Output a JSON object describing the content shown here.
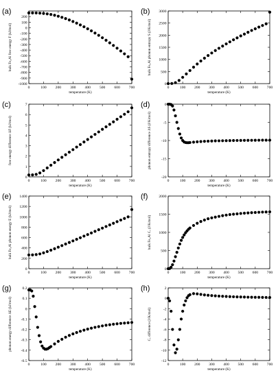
{
  "chart_data": [
    {
      "panel": "(a)",
      "type": "scatter",
      "xlabel": "temperature (K)",
      "ylabel": "bulk Fe₃Al free energy F (kJ/mol)",
      "xlim": [
        0,
        700
      ],
      "ylim": [
        -1000,
        300
      ],
      "xticks": [
        0,
        100,
        200,
        300,
        400,
        500,
        600,
        700
      ],
      "yticks": [
        -1000,
        -900,
        -800,
        -700,
        -600,
        -500,
        -400,
        -300,
        -200,
        -100,
        0,
        100,
        200
      ],
      "x": [
        0,
        25,
        50,
        75,
        100,
        125,
        150,
        175,
        200,
        225,
        250,
        275,
        300,
        325,
        350,
        375,
        400,
        425,
        450,
        475,
        500,
        525,
        550,
        575,
        600,
        625,
        650,
        675,
        700
      ],
      "y": [
        265,
        265,
        264,
        261,
        256,
        248,
        237,
        223,
        206,
        186,
        164,
        139,
        111,
        82,
        50,
        17,
        -19,
        -56,
        -95,
        -136,
        -179,
        -224,
        -270,
        -317,
        -366,
        -416,
        -467,
        -519,
        -920
      ]
    },
    {
      "panel": "(b)",
      "type": "scatter",
      "xlabel": "temperature (K)",
      "ylabel": "bulk Fe₃Al phonon entropy S (J/K/mol)",
      "xlim": [
        0,
        700
      ],
      "ylim": [
        0,
        3000
      ],
      "xticks": [
        0,
        100,
        200,
        300,
        400,
        500,
        600,
        700
      ],
      "yticks": [
        0,
        500,
        1000,
        1500,
        2000,
        2500,
        3000
      ],
      "x": [
        0,
        25,
        50,
        75,
        100,
        125,
        150,
        175,
        200,
        225,
        250,
        275,
        300,
        325,
        350,
        375,
        400,
        425,
        450,
        475,
        500,
        525,
        550,
        575,
        600,
        625,
        650,
        675,
        700
      ],
      "y": [
        0,
        5,
        40,
        130,
        260,
        400,
        540,
        680,
        810,
        935,
        1050,
        1160,
        1265,
        1365,
        1460,
        1550,
        1640,
        1725,
        1810,
        1890,
        1970,
        2045,
        2120,
        2195,
        2265,
        2335,
        2400,
        2470,
        2950
      ]
    },
    {
      "panel": "(c)",
      "type": "scatter",
      "xlabel": "temperature (K)",
      "ylabel": "free energy difference ΔF (kJ/mol)",
      "xlim": [
        0,
        700
      ],
      "ylim": [
        0,
        7
      ],
      "xticks": [
        0,
        100,
        200,
        300,
        400,
        500,
        600,
        700
      ],
      "yticks": [
        0,
        1,
        2,
        3,
        4,
        5,
        6,
        7
      ],
      "x": [
        0,
        25,
        50,
        75,
        100,
        125,
        150,
        175,
        200,
        225,
        250,
        275,
        300,
        325,
        350,
        375,
        400,
        425,
        450,
        475,
        500,
        525,
        550,
        575,
        600,
        625,
        650,
        675,
        700
      ],
      "y": [
        0.18,
        0.19,
        0.24,
        0.38,
        0.6,
        0.86,
        1.12,
        1.38,
        1.63,
        1.88,
        2.13,
        2.38,
        2.62,
        2.87,
        3.11,
        3.36,
        3.6,
        3.85,
        4.09,
        4.33,
        4.58,
        4.82,
        5.06,
        5.3,
        5.55,
        5.79,
        6.03,
        6.27,
        6.65
      ]
    },
    {
      "panel": "(d)",
      "type": "scatter",
      "xlabel": "temperature (K)",
      "ylabel": "phonon entropy difference ΔS (J/K/mol)",
      "xlim": [
        0,
        700
      ],
      "ylim": [
        -20,
        0
      ],
      "xticks": [
        0,
        100,
        200,
        300,
        400,
        500,
        600,
        700
      ],
      "yticks": [
        -20,
        -15,
        -10,
        -5,
        0
      ],
      "x": [
        0,
        10,
        20,
        30,
        40,
        50,
        60,
        70,
        80,
        90,
        100,
        110,
        120,
        130,
        140,
        150,
        175,
        200,
        225,
        250,
        275,
        300,
        325,
        350,
        375,
        400,
        425,
        450,
        475,
        500,
        525,
        550,
        575,
        600,
        625,
        650,
        675,
        700
      ],
      "y": [
        0,
        0,
        -0.1,
        -0.5,
        -1.6,
        -3.2,
        -5.0,
        -6.7,
        -8.2,
        -9.3,
        -10.0,
        -10.4,
        -10.55,
        -10.6,
        -10.6,
        -10.55,
        -10.45,
        -10.35,
        -10.28,
        -10.22,
        -10.18,
        -10.14,
        -10.1,
        -10.08,
        -10.06,
        -10.04,
        -10.02,
        -10.0,
        -9.99,
        -9.98,
        -9.96,
        -9.95,
        -9.94,
        -9.93,
        -9.92,
        -9.91,
        -9.9,
        -9.9
      ]
    },
    {
      "panel": "(e)",
      "type": "scatter",
      "xlabel": "temperature (K)",
      "ylabel": "bulk Fe₃Al phonon energy E (kJ/mol)",
      "xlim": [
        0,
        700
      ],
      "ylim": [
        0,
        1400
      ],
      "xticks": [
        0,
        100,
        200,
        300,
        400,
        500,
        600,
        700
      ],
      "yticks": [
        0,
        200,
        400,
        600,
        800,
        1000,
        1200,
        1400
      ],
      "x": [
        0,
        25,
        50,
        75,
        100,
        125,
        150,
        175,
        200,
        225,
        250,
        275,
        300,
        325,
        350,
        375,
        400,
        425,
        450,
        475,
        500,
        525,
        550,
        575,
        600,
        625,
        650,
        675,
        700
      ],
      "y": [
        265,
        266,
        272,
        285,
        305,
        330,
        357,
        385,
        415,
        445,
        475,
        505,
        536,
        566,
        597,
        628,
        658,
        689,
        720,
        751,
        782,
        813,
        844,
        875,
        906,
        937,
        968,
        999,
        1140
      ]
    },
    {
      "panel": "(f)",
      "type": "scatter",
      "xlabel": "temperature (K)",
      "ylabel": "bulk Fe₃Al Cᵥ (J/K/mol)",
      "xlim": [
        0,
        700
      ],
      "ylim": [
        0,
        2000
      ],
      "xticks": [
        0,
        100,
        200,
        300,
        400,
        500,
        600,
        700
      ],
      "yticks": [
        0,
        500,
        1000,
        1500,
        2000
      ],
      "x": [
        0,
        10,
        20,
        30,
        40,
        50,
        60,
        70,
        80,
        90,
        100,
        110,
        120,
        130,
        140,
        150,
        175,
        200,
        225,
        250,
        275,
        300,
        325,
        350,
        375,
        400,
        425,
        450,
        475,
        500,
        525,
        550,
        575,
        600,
        625,
        650,
        675,
        700
      ],
      "y": [
        0,
        5,
        40,
        110,
        210,
        330,
        450,
        570,
        680,
        780,
        860,
        930,
        990,
        1040,
        1085,
        1120,
        1190,
        1250,
        1300,
        1340,
        1375,
        1400,
        1420,
        1440,
        1460,
        1475,
        1490,
        1500,
        1510,
        1520,
        1528,
        1535,
        1542,
        1548,
        1553,
        1558,
        1562,
        1565
      ]
    },
    {
      "panel": "(g)",
      "type": "scatter",
      "xlabel": "temperature (K)",
      "ylabel": "phonon energy difference ΔE (kJ/mol)",
      "xlim": [
        0,
        700
      ],
      "ylim": [
        -0.5,
        0.2
      ],
      "xticks": [
        0,
        100,
        200,
        300,
        400,
        500,
        600,
        700
      ],
      "yticks": [
        -0.5,
        -0.4,
        -0.3,
        -0.2,
        -0.1,
        0,
        0.1,
        0.2
      ],
      "x": [
        0,
        10,
        20,
        30,
        40,
        50,
        60,
        70,
        80,
        90,
        100,
        110,
        120,
        130,
        140,
        150,
        175,
        200,
        225,
        250,
        275,
        300,
        325,
        350,
        375,
        400,
        425,
        450,
        475,
        500,
        525,
        550,
        575,
        600,
        625,
        650,
        675,
        700
      ],
      "y": [
        0.18,
        0.18,
        0.17,
        0.12,
        0.02,
        -0.08,
        -0.18,
        -0.26,
        -0.32,
        -0.36,
        -0.38,
        -0.39,
        -0.39,
        -0.385,
        -0.375,
        -0.365,
        -0.34,
        -0.315,
        -0.295,
        -0.275,
        -0.258,
        -0.243,
        -0.23,
        -0.218,
        -0.207,
        -0.197,
        -0.188,
        -0.18,
        -0.173,
        -0.166,
        -0.16,
        -0.155,
        -0.15,
        -0.146,
        -0.142,
        -0.139,
        -0.136,
        -0.133
      ]
    },
    {
      "panel": "(h)",
      "type": "scatter",
      "xlabel": "temperature (K)",
      "ylabel": "Cᵥ difference (J/K/mol)",
      "xlim": [
        0,
        700
      ],
      "ylim": [
        -12,
        2
      ],
      "xticks": [
        0,
        100,
        200,
        300,
        400,
        500,
        600,
        700
      ],
      "yticks": [
        -12,
        -10,
        -8,
        -6,
        -4,
        -2,
        0,
        2
      ],
      "x": [
        0,
        10,
        20,
        30,
        40,
        50,
        60,
        70,
        80,
        90,
        100,
        110,
        120,
        130,
        140,
        150,
        175,
        200,
        225,
        250,
        275,
        300,
        325,
        350,
        375,
        400,
        425,
        450,
        475,
        500,
        525,
        550,
        575,
        600,
        625,
        650,
        675,
        700
      ],
      "y": [
        0,
        -0.5,
        -2.5,
        -6.0,
        -9.0,
        -10.5,
        -9.8,
        -8.0,
        -6.0,
        -4.0,
        -2.5,
        -1.3,
        -0.5,
        0.1,
        0.5,
        0.7,
        0.9,
        0.85,
        0.75,
        0.65,
        0.58,
        0.52,
        0.47,
        0.42,
        0.38,
        0.35,
        0.32,
        0.29,
        0.27,
        0.25,
        0.23,
        0.21,
        0.2,
        0.19,
        0.18,
        0.17,
        0.16,
        0.15
      ]
    }
  ]
}
